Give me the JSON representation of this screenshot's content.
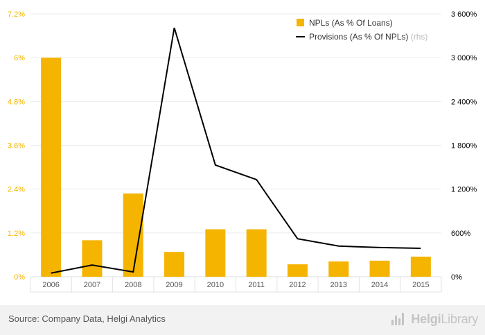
{
  "source": "Source: Company Data, Helgi Analytics",
  "logo": {
    "icon": "helgi-bars-icon",
    "text_left": "Helgi",
    "text_right": "Library"
  },
  "chart_data": {
    "type": "bar",
    "categories": [
      "2006",
      "2007",
      "2008",
      "2009",
      "2010",
      "2011",
      "2012",
      "2013",
      "2014",
      "2015"
    ],
    "series": [
      {
        "name": "NPLs (As % Of Loans)",
        "type": "bar",
        "axis": "left",
        "color": "#f5b400",
        "values": [
          6.0,
          1.0,
          2.28,
          0.68,
          1.3,
          1.3,
          0.34,
          0.42,
          0.44,
          0.55
        ]
      },
      {
        "name": "Provisions (As % Of NPLs)",
        "name_suffix": "(rhs)",
        "type": "line",
        "axis": "right",
        "color": "#000000",
        "values": [
          50,
          160,
          65,
          3410,
          1530,
          1330,
          520,
          420,
          400,
          390
        ]
      }
    ],
    "y_left": {
      "min": 0,
      "max": 7.2,
      "ticks": [
        0,
        1.2,
        2.4,
        3.6,
        4.8,
        6,
        7.2
      ],
      "tick_labels": [
        "0%",
        "1.2%",
        "2.4%",
        "3.6%",
        "4.8%",
        "6%",
        "7.2%"
      ],
      "label_color": "#f5b400"
    },
    "y_right": {
      "min": 0,
      "max": 3600,
      "ticks": [
        0,
        600,
        1200,
        1800,
        2400,
        3000,
        3600
      ],
      "tick_labels": [
        "0%",
        "600%",
        "1 200%",
        "1 800%",
        "2 400%",
        "3 000%",
        "3 600%"
      ],
      "label_color": "#000000"
    },
    "grid": true,
    "legend_placement": "top-right",
    "title": "",
    "xlabel": "",
    "ylabel": ""
  }
}
